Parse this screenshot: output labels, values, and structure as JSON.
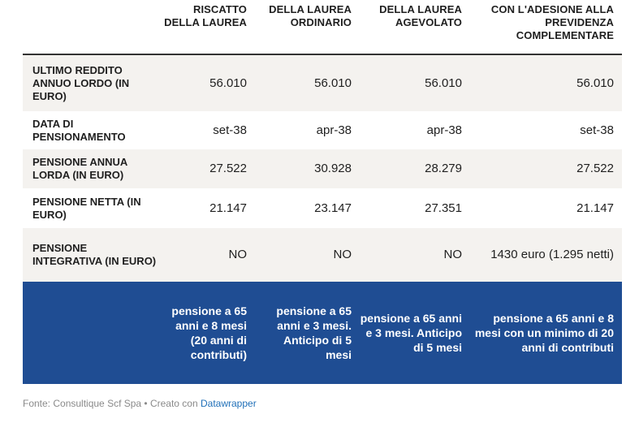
{
  "table": {
    "headers": [
      "",
      "RISCATTO DELLA LAUREA",
      "DELLA LAUREA ORDINARIO",
      "DELLA LAUREA AGEVOLATO",
      "CON L'ADESIONE ALLA PREVIDENZA COMPLEMENTARE"
    ],
    "rows": [
      {
        "label": "ULTIMO REDDITO ANNUO LORDO (IN EURO)",
        "values": [
          "56.010",
          "56.010",
          "56.010",
          "56.010"
        ]
      },
      {
        "label": "DATA DI PENSIONAMENTO",
        "values": [
          "set-38",
          "apr-38",
          "apr-38",
          "set-38"
        ]
      },
      {
        "label": "PENSIONE ANNUA LORDA (IN EURO)",
        "values": [
          "27.522",
          "30.928",
          "28.279",
          "27.522"
        ]
      },
      {
        "label": "PENSIONE NETTA (IN EURO)",
        "values": [
          "21.147",
          "23.147",
          "27.351",
          "21.147"
        ]
      },
      {
        "label": "PENSIONE INTEGRATIVA (IN EURO)",
        "values": [
          "NO",
          "NO",
          "NO",
          "1430 euro (1.295 netti)"
        ]
      }
    ],
    "summary_row": {
      "label": "",
      "values": [
        "pensione a 65 anni e 8 mesi (20 anni di contributi)",
        "pensione a 65 anni e 3 mesi. Anticipo di 5 mesi",
        "pensione a 65 anni e 3 mesi. Anticipo di 5 mesi",
        "pensione a 65 anni e 8 mesi con un minimo di 20 anni di contributi"
      ]
    }
  },
  "footer": {
    "source_text": "Fonte: Consultique Scf Spa • Creato con ",
    "link_text": "Datawrapper"
  },
  "colors": {
    "summary_background": "#1f4d93",
    "shaded_row": "#f4f2ef",
    "link": "#1f6fb8"
  }
}
